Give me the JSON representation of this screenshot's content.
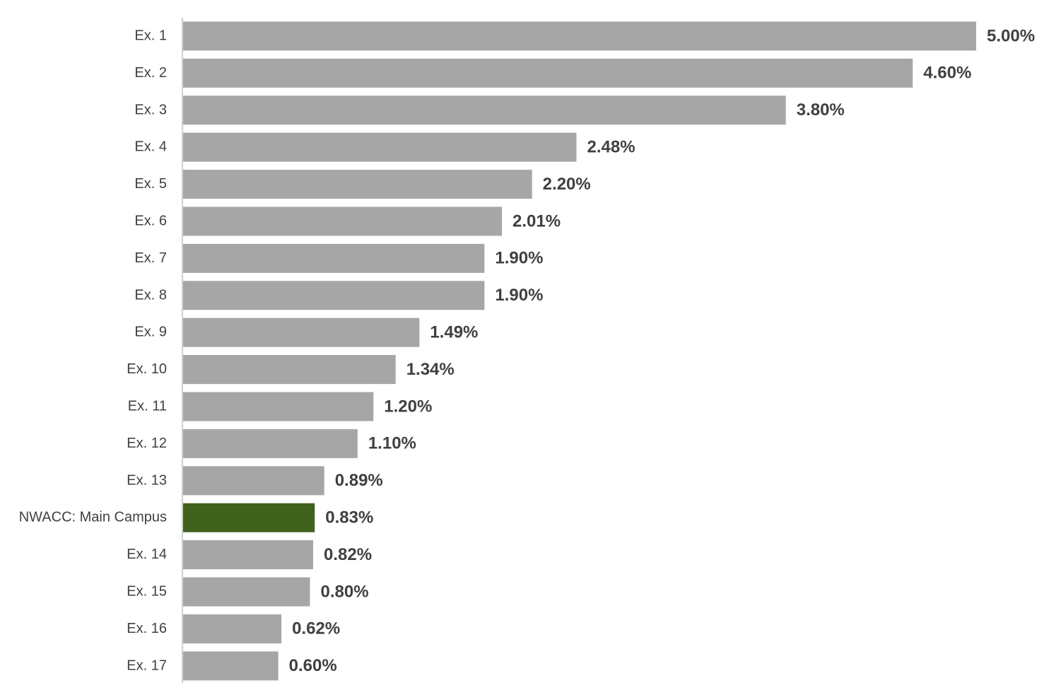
{
  "chart_data": {
    "type": "bar",
    "categories": [
      "Ex. 1",
      "Ex. 2",
      "Ex. 3",
      "Ex. 4",
      "Ex. 5",
      "Ex. 6",
      "Ex. 7",
      "Ex. 8",
      "Ex. 9",
      "Ex. 10",
      "Ex. 11",
      "Ex. 12",
      "Ex. 13",
      "NWACC: Main Campus",
      "Ex. 14",
      "Ex. 15",
      "Ex. 16",
      "Ex. 17"
    ],
    "values": [
      5,
      4.6,
      3.8,
      2.48,
      2.2,
      2.01,
      1.9,
      1.9,
      1.49,
      1.34,
      1.2,
      1.1,
      0.89,
      0.83,
      0.82,
      0.8,
      0.62,
      0.6
    ],
    "value_labels": [
      "5.00%",
      "4.60%",
      "3.80%",
      "2.48%",
      "2.20%",
      "2.01%",
      "1.90%",
      "1.90%",
      "1.49%",
      "1.34%",
      "1.20%",
      "1.10%",
      "0.89%",
      "0.83%",
      "0.82%",
      "0.80%",
      "0.62%",
      "0.60%"
    ],
    "colors": [
      "#a6a6a6",
      "#a6a6a6",
      "#a6a6a6",
      "#a6a6a6",
      "#a6a6a6",
      "#a6a6a6",
      "#a6a6a6",
      "#a6a6a6",
      "#a6a6a6",
      "#a6a6a6",
      "#a6a6a6",
      "#a6a6a6",
      "#a6a6a6",
      "#40621d",
      "#a6a6a6",
      "#a6a6a6",
      "#a6a6a6",
      "#a6a6a6"
    ]
  }
}
